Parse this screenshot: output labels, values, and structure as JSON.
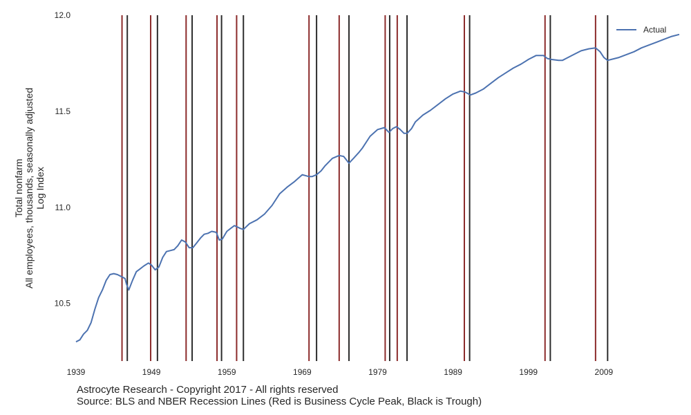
{
  "chart_data": {
    "type": "line",
    "title": "",
    "ylabel_lines": [
      "Total nonfarm",
      "All employees, thousands, seasonally adjusted",
      "Log Index"
    ],
    "xlabel": "",
    "xlim": [
      1939,
      2019
    ],
    "ylim": [
      10.2,
      12.0
    ],
    "x_ticks": [
      1939,
      1949,
      1959,
      1969,
      1979,
      1989,
      1999,
      2009
    ],
    "y_ticks": [
      10.5,
      11.0,
      11.5,
      12.0
    ],
    "y_tick_labels": [
      "10.5",
      "11.0",
      "11.5",
      "12.0"
    ],
    "grid": false,
    "legend_placement": "top-right",
    "series": [
      {
        "name": "Actual",
        "color": "#4c72b0",
        "x": [
          1939.0,
          1939.5,
          1940.0,
          1940.5,
          1941.0,
          1941.5,
          1942.0,
          1942.5,
          1943.0,
          1943.5,
          1944.0,
          1944.5,
          1945.0,
          1945.5,
          1945.7,
          1946.0,
          1946.5,
          1947.0,
          1947.5,
          1948.0,
          1948.6,
          1949.0,
          1949.5,
          1950.0,
          1950.5,
          1951.0,
          1951.5,
          1952.0,
          1952.5,
          1953.0,
          1953.5,
          1954.0,
          1954.5,
          1955.0,
          1955.5,
          1956.0,
          1956.5,
          1957.0,
          1957.6,
          1958.0,
          1958.4,
          1959.0,
          1959.5,
          1960.0,
          1960.3,
          1960.8,
          1961.2,
          1962.0,
          1963.0,
          1964.0,
          1965.0,
          1966.0,
          1967.0,
          1968.0,
          1969.0,
          1969.9,
          1970.3,
          1970.9,
          1971.5,
          1972.0,
          1973.0,
          1973.9,
          1974.5,
          1975.2,
          1975.8,
          1976.5,
          1977.0,
          1978.0,
          1979.0,
          1979.9,
          1980.5,
          1981.0,
          1981.5,
          1982.0,
          1982.5,
          1982.9,
          1983.5,
          1984.0,
          1985.0,
          1986.0,
          1987.0,
          1988.0,
          1989.0,
          1990.0,
          1990.6,
          1991.3,
          1992.0,
          1993.0,
          1994.0,
          1995.0,
          1996.0,
          1997.0,
          1998.0,
          1999.0,
          2000.0,
          2001.0,
          2001.5,
          2002.0,
          2003.0,
          2003.5,
          2004.0,
          2005.0,
          2006.0,
          2007.0,
          2007.9,
          2008.5,
          2009.0,
          2009.5,
          2010.0,
          2011.0,
          2012.0,
          2013.0,
          2014.0,
          2015.0,
          2016.0,
          2017.0,
          2018.0,
          2019.0
        ],
        "y": [
          10.3,
          10.31,
          10.34,
          10.36,
          10.4,
          10.47,
          10.53,
          10.57,
          10.62,
          10.65,
          10.655,
          10.65,
          10.64,
          10.63,
          10.6,
          10.57,
          10.62,
          10.665,
          10.68,
          10.695,
          10.71,
          10.7,
          10.675,
          10.69,
          10.74,
          10.77,
          10.775,
          10.78,
          10.8,
          10.83,
          10.82,
          10.79,
          10.79,
          10.815,
          10.84,
          10.86,
          10.865,
          10.875,
          10.87,
          10.83,
          10.835,
          10.875,
          10.89,
          10.905,
          10.9,
          10.89,
          10.885,
          10.915,
          10.935,
          10.965,
          11.01,
          11.07,
          11.105,
          11.135,
          11.17,
          11.16,
          11.16,
          11.17,
          11.19,
          11.215,
          11.255,
          11.27,
          11.265,
          11.23,
          11.255,
          11.285,
          11.31,
          11.37,
          11.405,
          11.415,
          11.39,
          11.41,
          11.42,
          11.405,
          11.385,
          11.385,
          11.41,
          11.445,
          11.48,
          11.505,
          11.535,
          11.565,
          11.59,
          11.605,
          11.6,
          11.585,
          11.595,
          11.615,
          11.645,
          11.675,
          11.7,
          11.725,
          11.745,
          11.77,
          11.79,
          11.79,
          11.775,
          11.77,
          11.765,
          11.765,
          11.775,
          11.795,
          11.815,
          11.825,
          11.83,
          11.81,
          11.78,
          11.765,
          11.77,
          11.78,
          11.795,
          11.81,
          11.83,
          11.845,
          11.86,
          11.875,
          11.89,
          11.9
        ]
      }
    ],
    "recession_peaks": [
      1945.1,
      1948.9,
      1953.6,
      1957.7,
      1960.3,
      1969.9,
      1973.9,
      1980.0,
      1981.6,
      1990.5,
      2001.2,
      2007.9
    ],
    "recession_troughs": [
      1945.8,
      1949.8,
      1954.4,
      1958.3,
      1961.2,
      1970.9,
      1975.2,
      1980.6,
      1982.9,
      1991.2,
      2001.9,
      2009.5
    ],
    "peak_color": "#8b2a2a",
    "trough_color": "#2b2b2b"
  },
  "captions": {
    "copyright": "Astrocyte Research - Copyright 2017 - All rights reserved",
    "source": "Source: BLS and NBER Recession Lines (Red is Business Cycle Peak, Black is Trough)"
  }
}
